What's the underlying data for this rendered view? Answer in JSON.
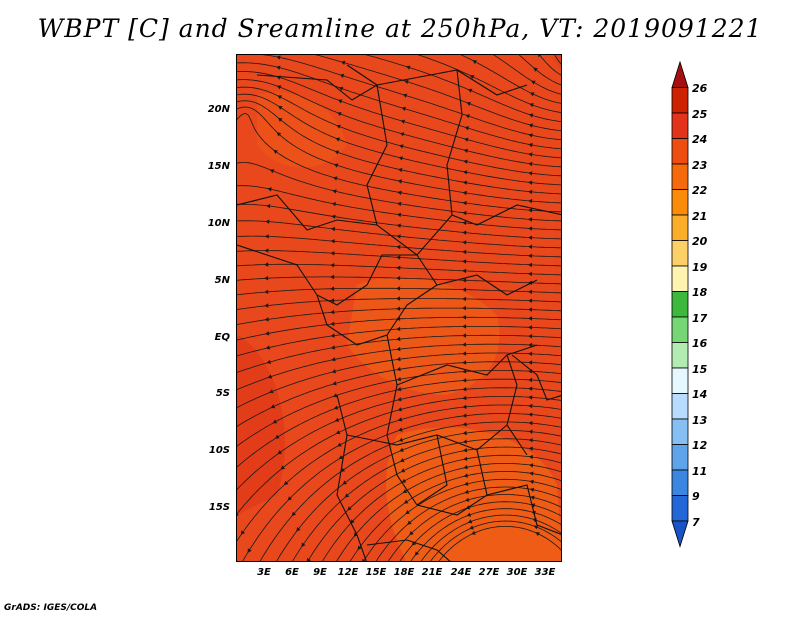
{
  "title": "WBPT [C] and Sreamline at 250hPa, VT: 2019091221",
  "footer": "GrADS: IGES/COLA",
  "map": {
    "background_fill": "#e8481c",
    "lat_ticks": [
      "20N",
      "15N",
      "10N",
      "5N",
      "EQ",
      "5S",
      "10S",
      "15S"
    ],
    "lon_ticks": [
      "3E",
      "6E",
      "9E",
      "12E",
      "15E",
      "18E",
      "21E",
      "24E",
      "27E",
      "30E",
      "33E"
    ],
    "lon_range": [
      0,
      35
    ],
    "lat_range": [
      -19.7,
      24.8
    ]
  },
  "colorbar": {
    "labels": [
      "26",
      "25",
      "24",
      "23",
      "22",
      "21",
      "20",
      "19",
      "18",
      "17",
      "16",
      "15",
      "14",
      "13",
      "12",
      "11",
      "9",
      "7"
    ],
    "colors": [
      "#a50f0f",
      "#cc2200",
      "#e3331a",
      "#ee4d12",
      "#f56a0c",
      "#fa8c0a",
      "#fbae2a",
      "#fdd067",
      "#fff3b0",
      "#3cb83c",
      "#74d674",
      "#b2ecb2",
      "#e6f8ff",
      "#b7dcff",
      "#86bff4",
      "#5ea4ea",
      "#3b86e0",
      "#2266d8",
      "#1a52c8"
    ]
  }
}
